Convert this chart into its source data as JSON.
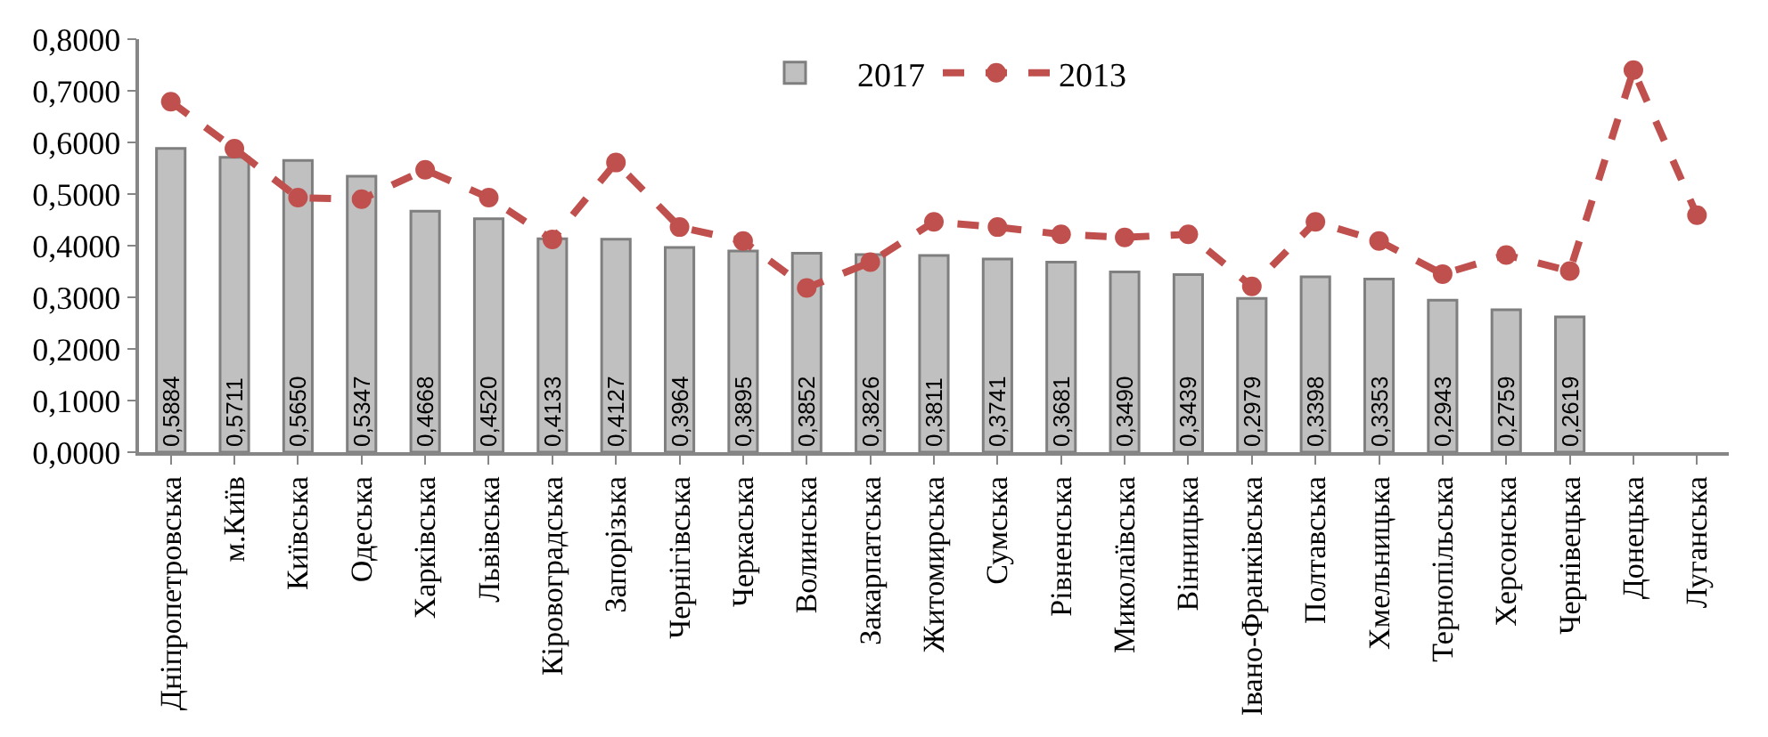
{
  "chart_data": {
    "type": "bar",
    "categories": [
      "Дніпропетровська",
      "м.Київ",
      "Київська",
      "Одеська",
      "Харківська",
      "Львівська",
      "Кіровоградська",
      "Запорізька",
      "Чернігівська",
      "Черкаська",
      "Волинська",
      "Закарпатська",
      "Житомирська",
      "Сумська",
      "Рівненська",
      "Миколаївська",
      "Вінницька",
      "Івано-Франківська",
      "Полтавська",
      "Хмельницька",
      "Тернопільська",
      "Херсонська",
      "Чернівецька",
      "Донецька",
      "Луганська"
    ],
    "series": [
      {
        "name": "2017",
        "color": "#c0c0c0",
        "values": [
          0.5884,
          0.5711,
          0.565,
          0.5347,
          0.4668,
          0.452,
          0.4133,
          0.4127,
          0.3964,
          0.3895,
          0.3852,
          0.3826,
          0.3811,
          0.3741,
          0.3681,
          0.349,
          0.3439,
          0.2979,
          0.3398,
          0.3353,
          0.2943,
          0.2759,
          0.2619,
          null,
          null
        ],
        "value_labels": [
          "0,5884",
          "0,5711",
          "0,5650",
          "0,5347",
          "0,4668",
          "0,4520",
          "0,4133",
          "0,4127",
          "0,3964",
          "0,3895",
          "0,3852",
          "0,3826",
          "0,3811",
          "0,3741",
          "0,3681",
          "0,3490",
          "0,3439",
          "0,2979",
          "0,3398",
          "0,3353",
          "0,2943",
          "0,2759",
          "0,2619",
          null,
          null
        ]
      },
      {
        "name": "2013",
        "type": "line",
        "color": "#c0504d",
        "marker": "circle",
        "line_style": "dashed",
        "values": [
          0.679,
          0.588,
          0.493,
          0.49,
          0.547,
          0.493,
          0.412,
          0.561,
          0.436,
          0.409,
          0.318,
          0.368,
          0.446,
          0.436,
          0.422,
          0.416,
          0.422,
          0.321,
          0.446,
          0.409,
          0.345,
          0.382,
          0.351,
          0.74,
          0.459
        ]
      }
    ],
    "ylim": [
      0,
      0.8
    ],
    "yticks": [
      {
        "value": 0,
        "label": "0,0000"
      },
      {
        "value": 0.1,
        "label": "0,1000"
      },
      {
        "value": 0.2,
        "label": "0,2000"
      },
      {
        "value": 0.3,
        "label": "0,3000"
      },
      {
        "value": 0.4,
        "label": "0,4000"
      },
      {
        "value": 0.5,
        "label": "0,5000"
      },
      {
        "value": 0.6,
        "label": "0,6000"
      },
      {
        "value": 0.7,
        "label": "0,7000"
      },
      {
        "value": 0.8,
        "label": "0,8000"
      }
    ],
    "legend": "top"
  }
}
